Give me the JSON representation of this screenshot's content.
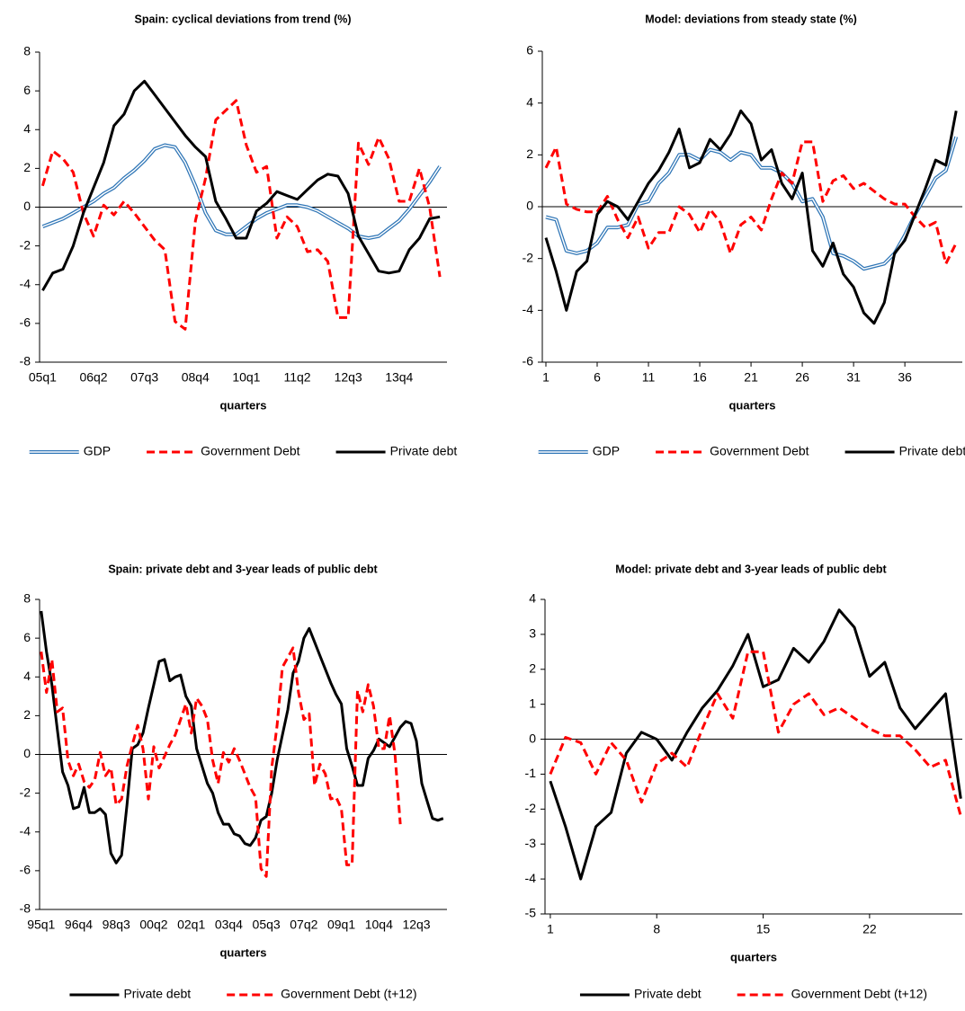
{
  "chart_data": [
    {
      "type": "line",
      "title": "Spain: cyclical deviations from trend (%)",
      "x_label": "quarters",
      "categories": [
        "05q1",
        null,
        null,
        null,
        null,
        "06q2",
        null,
        null,
        null,
        null,
        "07q3",
        null,
        null,
        null,
        null,
        "08q4",
        null,
        null,
        null,
        null,
        "10q1",
        null,
        null,
        null,
        null,
        "11q2",
        null,
        null,
        null,
        null,
        "12q3",
        null,
        null,
        null,
        null,
        "13q4",
        null,
        null,
        null,
        null
      ],
      "series": [
        {
          "name": "GDP",
          "color": "#2e75b6",
          "style": "double",
          "values": [
            -1.0,
            -0.8,
            -0.6,
            -0.3,
            0,
            0.3,
            0.7,
            1.0,
            1.5,
            1.9,
            2.4,
            3.0,
            3.2,
            3.1,
            2.3,
            1.1,
            -0.3,
            -1.2,
            -1.4,
            -1.4,
            -1.0,
            -0.6,
            -0.3,
            -0.1,
            0.1,
            0.1,
            0.0,
            -0.2,
            -0.5,
            -0.8,
            -1.1,
            -1.5,
            -1.6,
            -1.5,
            -1.1,
            -0.7,
            -0.1,
            0.6,
            1.3,
            2.1
          ]
        },
        {
          "name": "Government Debt",
          "color": "#ff0000",
          "style": "dashed",
          "values": [
            1.1,
            2.9,
            2.5,
            1.8,
            -0.3,
            -1.5,
            0.1,
            -0.4,
            0.3,
            -0.3,
            -1.0,
            -1.7,
            -2.2,
            -5.9,
            -6.3,
            -0.7,
            1.5,
            4.5,
            5.0,
            5.5,
            3.2,
            1.8,
            2.1,
            -1.6,
            -0.5,
            -1.0,
            -2.3,
            -2.2,
            -2.8,
            -5.7,
            -5.7,
            3.3,
            2.2,
            3.6,
            2.5,
            0.3,
            0.3,
            2.0,
            0.0,
            -3.6
          ]
        },
        {
          "name": "Private debt",
          "color": "#000000",
          "style": "solid",
          "values": [
            -4.3,
            -3.4,
            -3.2,
            -2.0,
            -0.3,
            1.0,
            2.3,
            4.2,
            4.8,
            6.0,
            6.5,
            5.8,
            5.1,
            4.4,
            3.7,
            3.1,
            2.6,
            0.3,
            -0.6,
            -1.6,
            -1.6,
            -0.2,
            0.2,
            0.8,
            0.6,
            0.4,
            0.9,
            1.4,
            1.7,
            1.6,
            0.7,
            -1.5,
            -2.4,
            -3.3,
            -3.4,
            -3.3,
            -2.2,
            -1.6,
            -0.6,
            -0.5
          ]
        }
      ],
      "ylim": [
        -8,
        8
      ],
      "yticks": [
        -8,
        -6,
        -4,
        -2,
        0,
        2,
        4,
        6,
        8
      ],
      "zero_line": true,
      "grid": false,
      "legend": "bottom"
    },
    {
      "type": "line",
      "title": "Model: deviations from steady state (%)",
      "x_label": "quarters",
      "x": [
        1,
        2,
        3,
        4,
        5,
        6,
        7,
        8,
        9,
        10,
        11,
        12,
        13,
        14,
        15,
        16,
        17,
        18,
        19,
        20,
        21,
        22,
        23,
        24,
        25,
        26,
        27,
        28,
        29,
        30,
        31,
        32,
        33,
        34,
        35,
        36,
        37,
        38,
        39,
        40,
        41
      ],
      "series": [
        {
          "name": "GDP",
          "color": "#2e75b6",
          "style": "double",
          "values": [
            -0.4,
            -0.5,
            -1.7,
            -1.8,
            -1.7,
            -1.4,
            -0.8,
            -0.8,
            -0.7,
            0.1,
            0.2,
            0.9,
            1.3,
            2.0,
            2.0,
            1.8,
            2.2,
            2.1,
            1.8,
            2.1,
            2.0,
            1.5,
            1.5,
            1.3,
            0.9,
            0.2,
            0.3,
            -0.4,
            -1.8,
            -1.9,
            -2.1,
            -2.4,
            -2.3,
            -2.2,
            -1.8,
            -1.1,
            -0.3,
            0.4,
            1.1,
            1.4,
            2.7
          ]
        },
        {
          "name": "Government Debt",
          "color": "#ff0000",
          "style": "dashed",
          "values": [
            1.5,
            2.3,
            0.1,
            -0.1,
            -0.2,
            -0.2,
            0.4,
            -0.5,
            -1.2,
            -0.4,
            -1.6,
            -1.0,
            -1.0,
            0.0,
            -0.3,
            -1.0,
            -0.1,
            -0.6,
            -1.8,
            -0.7,
            -0.4,
            -0.9,
            0.3,
            1.3,
            0.9,
            2.5,
            2.5,
            0.2,
            1.0,
            1.2,
            0.7,
            0.9,
            0.6,
            0.3,
            0.1,
            0.1,
            -0.4,
            -0.8,
            -0.6,
            -2.2,
            -1.4
          ]
        },
        {
          "name": "Private debt",
          "color": "#000000",
          "style": "solid",
          "values": [
            -1.2,
            -2.5,
            -4.0,
            -2.5,
            -2.1,
            -0.3,
            0.2,
            0.0,
            -0.5,
            0.2,
            0.9,
            1.4,
            2.1,
            3.0,
            1.5,
            1.7,
            2.6,
            2.2,
            2.8,
            3.7,
            3.2,
            1.8,
            2.2,
            0.9,
            0.3,
            1.3,
            -1.7,
            -2.3,
            -1.4,
            -2.6,
            -3.1,
            -4.1,
            -4.5,
            -3.7,
            -1.8,
            -1.3,
            -0.3,
            0.7,
            1.8,
            1.6,
            3.7
          ]
        }
      ],
      "xlim": [
        0.65,
        41.6
      ],
      "xticks": [
        1,
        6,
        11,
        16,
        21,
        26,
        31,
        36
      ],
      "ylim": [
        -6,
        6
      ],
      "yticks": [
        -6,
        -4,
        -2,
        0,
        2,
        4,
        6
      ],
      "zero_line": true,
      "grid": false,
      "legend": "bottom"
    },
    {
      "type": "line",
      "title": "Spain: private debt and 3-year leads of public debt",
      "x_label": "quarters",
      "categories": [
        "95q1",
        null,
        null,
        null,
        null,
        null,
        null,
        "96q4",
        null,
        null,
        null,
        null,
        null,
        null,
        "98q3",
        null,
        null,
        null,
        null,
        null,
        null,
        "00q2",
        null,
        null,
        null,
        null,
        null,
        null,
        "02q1",
        null,
        null,
        null,
        null,
        null,
        null,
        "03q4",
        null,
        null,
        null,
        null,
        null,
        null,
        "05q3",
        null,
        null,
        null,
        null,
        null,
        null,
        "07q2",
        null,
        null,
        null,
        null,
        null,
        null,
        "09q1",
        null,
        null,
        null,
        null,
        null,
        null,
        "10q4",
        null,
        null,
        null,
        null,
        null,
        null,
        "12q3",
        null,
        null,
        null,
        null,
        null
      ],
      "series": [
        {
          "name": "Private debt",
          "color": "#000000",
          "style": "solid",
          "values": [
            7.4,
            5.3,
            3.6,
            1.3,
            -0.9,
            -1.6,
            -2.8,
            -2.7,
            -1.7,
            -3.0,
            -3.0,
            -2.8,
            -3.1,
            -5.1,
            -5.6,
            -5.2,
            -2.6,
            0.3,
            0.5,
            1.1,
            2.4,
            3.6,
            4.8,
            4.9,
            3.8,
            4.0,
            4.1,
            3.0,
            2.5,
            0.3,
            -0.6,
            -1.5,
            -2.0,
            -3.0,
            -3.6,
            -3.6,
            -4.1,
            -4.2,
            -4.6,
            -4.7,
            -4.3,
            -3.4,
            -3.2,
            -2.0,
            -0.3,
            1.0,
            2.3,
            4.2,
            4.8,
            6.0,
            6.5,
            5.8,
            5.1,
            4.4,
            3.7,
            3.1,
            2.6,
            0.3,
            -0.6,
            -1.6,
            -1.6,
            -0.2,
            0.2,
            0.8,
            0.6,
            0.4,
            0.9,
            1.4,
            1.7,
            1.6,
            0.7,
            -1.5,
            -2.4,
            -3.3,
            -3.4,
            -3.3
          ]
        },
        {
          "name": "Government Debt (t+12)",
          "color": "#ff0000",
          "style": "dashed",
          "values": [
            5.3,
            3.2,
            4.9,
            2.2,
            2.4,
            -0.3,
            -1.1,
            -0.5,
            -1.4,
            -1.7,
            -1.3,
            0.1,
            -1.1,
            -0.7,
            -2.6,
            -2.3,
            -0.6,
            0.5,
            1.5,
            0.3,
            -2.3,
            0.4,
            -0.7,
            -0.1,
            0.5,
            1.0,
            1.8,
            2.6,
            1.1,
            2.9,
            2.5,
            1.8,
            -0.3,
            -1.5,
            0.1,
            -0.4,
            0.3,
            -0.3,
            -1.0,
            -1.7,
            -2.2,
            -5.9,
            -6.3,
            -0.7,
            1.5,
            4.5,
            5.0,
            5.5,
            3.2,
            1.8,
            2.1,
            -1.6,
            -0.5,
            -1.0,
            -2.3,
            -2.2,
            -2.8,
            -5.7,
            -5.7,
            3.3,
            2.2,
            3.6,
            2.5,
            0.3,
            0.3,
            2.0,
            0.0,
            -3.6,
            null,
            null,
            null,
            null,
            null,
            null,
            null,
            null
          ]
        }
      ],
      "ylim": [
        -8,
        8
      ],
      "yticks": [
        -8,
        -6,
        -4,
        -2,
        0,
        2,
        4,
        6,
        8
      ],
      "zero_line": true,
      "grid": false,
      "legend": "bottom"
    },
    {
      "type": "line",
      "title": "Model: private debt and 3-year leads of public debt",
      "x_label": "quarters",
      "x": [
        1,
        2,
        3,
        4,
        5,
        6,
        7,
        8,
        9,
        10,
        11,
        12,
        13,
        14,
        15,
        16,
        17,
        18,
        19,
        20,
        21,
        22,
        23,
        24,
        25,
        26,
        27,
        28
      ],
      "series": [
        {
          "name": "Private debt",
          "color": "#000000",
          "style": "solid",
          "values": [
            -1.2,
            -2.5,
            -4.0,
            -2.5,
            -2.1,
            -0.4,
            0.2,
            0.0,
            -0.6,
            0.2,
            0.9,
            1.4,
            2.1,
            3.0,
            1.5,
            1.7,
            2.6,
            2.2,
            2.8,
            3.7,
            3.2,
            1.8,
            2.2,
            0.9,
            0.3,
            0.8,
            1.3,
            -1.7
          ]
        },
        {
          "name": "Government Debt (t+12)",
          "color": "#ff0000",
          "style": "dashed",
          "values": [
            -1.0,
            0.05,
            -0.1,
            -1.0,
            -0.1,
            -0.6,
            -1.8,
            -0.7,
            -0.4,
            -0.8,
            0.3,
            1.3,
            0.6,
            2.5,
            2.5,
            0.2,
            1.0,
            1.3,
            0.7,
            0.9,
            0.6,
            0.3,
            0.1,
            0.1,
            -0.3,
            -0.8,
            -0.6,
            -2.2
          ]
        }
      ],
      "xlim": [
        0.65,
        28.1
      ],
      "xticks": [
        1,
        8,
        15,
        22
      ],
      "ylim": [
        -5,
        4
      ],
      "yticks": [
        -5,
        -4,
        -3,
        -2,
        -1,
        0,
        1,
        2,
        3,
        4
      ],
      "zero_line": true,
      "grid": false,
      "legend": "bottom"
    }
  ]
}
